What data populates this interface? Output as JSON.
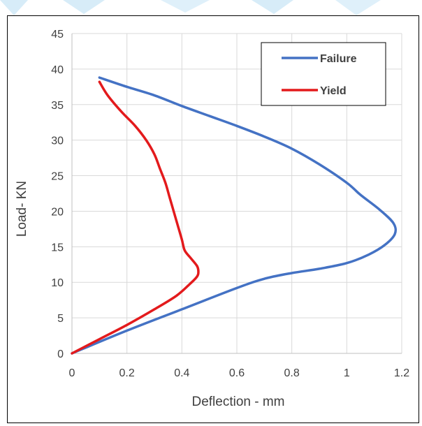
{
  "chart_data": {
    "type": "line",
    "title": "",
    "xlabel": "Deflection - mm",
    "ylabel": "Load- KN",
    "xlim": [
      0,
      1.2
    ],
    "ylim": [
      0,
      45
    ],
    "x_ticks": [
      "0",
      "0.2",
      "0.4",
      "0.6",
      "0.8",
      "1",
      "1.2"
    ],
    "y_ticks": [
      "0",
      "5",
      "10",
      "15",
      "20",
      "25",
      "30",
      "35",
      "40",
      "45"
    ],
    "grid": true,
    "legend_position": "top-right",
    "series": [
      {
        "name": "Failure",
        "color": "#4472C4",
        "points": [
          [
            0,
            0
          ],
          [
            0.2,
            3.2
          ],
          [
            0.4,
            6.2
          ],
          [
            0.6,
            9.2
          ],
          [
            0.7,
            10.5
          ],
          [
            0.8,
            11.3
          ],
          [
            0.9,
            11.9
          ],
          [
            1.0,
            12.7
          ],
          [
            1.08,
            13.9
          ],
          [
            1.14,
            15.3
          ],
          [
            1.175,
            16.8
          ],
          [
            1.17,
            18.3
          ],
          [
            1.12,
            20.2
          ],
          [
            1.05,
            22.3
          ],
          [
            1.0,
            24.0
          ],
          [
            0.9,
            26.6
          ],
          [
            0.8,
            28.8
          ],
          [
            0.7,
            30.5
          ],
          [
            0.6,
            32.0
          ],
          [
            0.5,
            33.4
          ],
          [
            0.4,
            34.8
          ],
          [
            0.3,
            36.3
          ],
          [
            0.2,
            37.5
          ],
          [
            0.1,
            38.8
          ]
        ]
      },
      {
        "name": "Yield",
        "color": "#E31A1C",
        "points": [
          [
            0,
            0
          ],
          [
            0.1,
            2.0
          ],
          [
            0.2,
            4.0
          ],
          [
            0.3,
            6.2
          ],
          [
            0.38,
            8.1
          ],
          [
            0.43,
            9.8
          ],
          [
            0.455,
            10.8
          ],
          [
            0.46,
            11.5
          ],
          [
            0.455,
            12.3
          ],
          [
            0.43,
            13.5
          ],
          [
            0.41,
            14.5
          ],
          [
            0.4,
            16.0
          ],
          [
            0.385,
            18.0
          ],
          [
            0.37,
            20.0
          ],
          [
            0.355,
            22.0
          ],
          [
            0.34,
            24.0
          ],
          [
            0.32,
            26.0
          ],
          [
            0.3,
            28.0
          ],
          [
            0.27,
            30.0
          ],
          [
            0.23,
            32.0
          ],
          [
            0.18,
            34.0
          ],
          [
            0.13,
            36.3
          ],
          [
            0.1,
            38.2
          ]
        ]
      }
    ]
  }
}
